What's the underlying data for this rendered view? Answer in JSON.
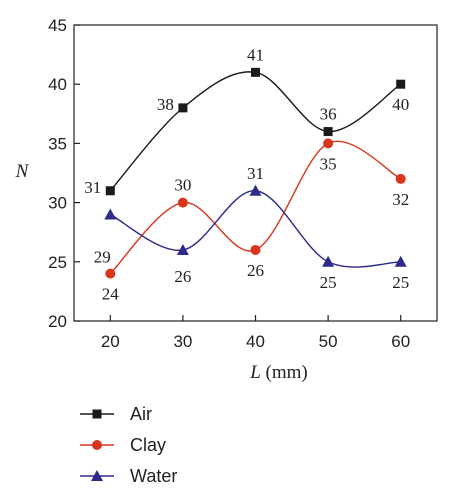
{
  "chart_data": {
    "type": "line",
    "x": [
      20,
      30,
      40,
      50,
      60
    ],
    "xlabel_italic": "L",
    "xlabel_unit": " (mm)",
    "ylabel": "N",
    "xlim": [
      15,
      65
    ],
    "ylim": [
      20,
      45
    ],
    "xticks": [
      20,
      30,
      40,
      50,
      60
    ],
    "yticks": [
      20,
      25,
      30,
      35,
      40,
      45
    ],
    "grid": false,
    "legend_position": "bottom-left",
    "series": [
      {
        "name": "Air",
        "values": [
          31,
          38,
          41,
          36,
          40
        ],
        "color": "#1a1a1a",
        "marker": "square"
      },
      {
        "name": "Clay",
        "values": [
          24,
          30,
          26,
          35,
          32
        ],
        "color": "#d9341c",
        "marker": "circle"
      },
      {
        "name": "Water",
        "values": [
          29,
          26,
          31,
          25,
          25
        ],
        "color": "#2e2a8a",
        "marker": "triangle"
      }
    ],
    "data_labels": [
      {
        "series": 0,
        "text": "31",
        "pos": "left"
      },
      {
        "series": 0,
        "text": "38",
        "pos": "left"
      },
      {
        "series": 0,
        "text": "41",
        "pos": "above"
      },
      {
        "series": 0,
        "text": "36",
        "pos": "above"
      },
      {
        "series": 0,
        "text": "40",
        "pos": "below"
      },
      {
        "series": 1,
        "text": "24",
        "pos": "below"
      },
      {
        "series": 1,
        "text": "30",
        "pos": "above"
      },
      {
        "series": 1,
        "text": "26",
        "pos": "below"
      },
      {
        "series": 1,
        "text": "35",
        "pos": "below"
      },
      {
        "series": 1,
        "text": "32",
        "pos": "below"
      },
      {
        "series": 2,
        "text": "29",
        "pos": "below-left"
      },
      {
        "series": 2,
        "text": "26",
        "pos": "below-far"
      },
      {
        "series": 2,
        "text": "31",
        "pos": "above"
      },
      {
        "series": 2,
        "text": "25",
        "pos": "below"
      },
      {
        "series": 2,
        "text": "25",
        "pos": "below"
      }
    ]
  }
}
